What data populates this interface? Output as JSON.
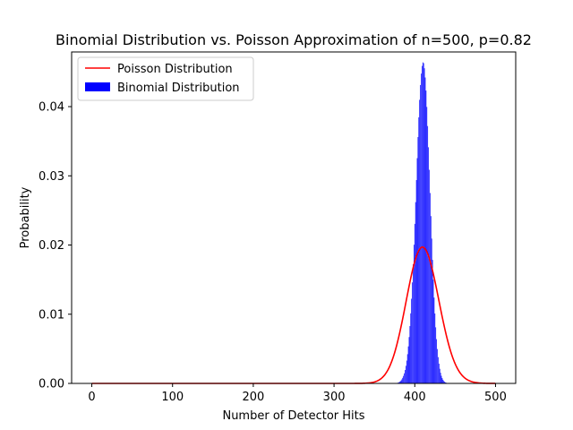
{
  "chart_data": {
    "type": "bar",
    "title": "Binomial Distribution vs. Poisson Approximation of n=500, p=0.82",
    "xlabel": "Number of Detector Hits",
    "ylabel": "Probability",
    "xlim": [
      -25,
      525
    ],
    "ylim": [
      0,
      0.0479
    ],
    "x_ticks": [
      0,
      100,
      200,
      300,
      400,
      500
    ],
    "x_tick_labels": [
      "0",
      "100",
      "200",
      "300",
      "400",
      "500"
    ],
    "y_ticks": [
      0,
      0.01,
      0.02,
      0.03,
      0.04
    ],
    "y_tick_labels": [
      "0.00",
      "0.01",
      "0.02",
      "0.03",
      "0.04"
    ],
    "grid": false,
    "legend_position": "top-left",
    "n": 500,
    "p": 0.82,
    "series": [
      {
        "name": "Poisson Distribution",
        "kind": "line",
        "color": "#ff0000",
        "lambda": 410,
        "x_range": [
          0,
          500
        ],
        "peak": 0.0197
      },
      {
        "name": "Binomial Distribution",
        "kind": "bar",
        "color": "#0000ff",
        "x_range": [
          0,
          500
        ],
        "mean": 410,
        "peak": 0.0459
      }
    ],
    "legend": [
      {
        "label": "Poisson Distribution",
        "color": "#ff0000",
        "marker": "line"
      },
      {
        "label": "Binomial Distribution",
        "color": "#0000ff",
        "marker": "patch"
      }
    ]
  }
}
